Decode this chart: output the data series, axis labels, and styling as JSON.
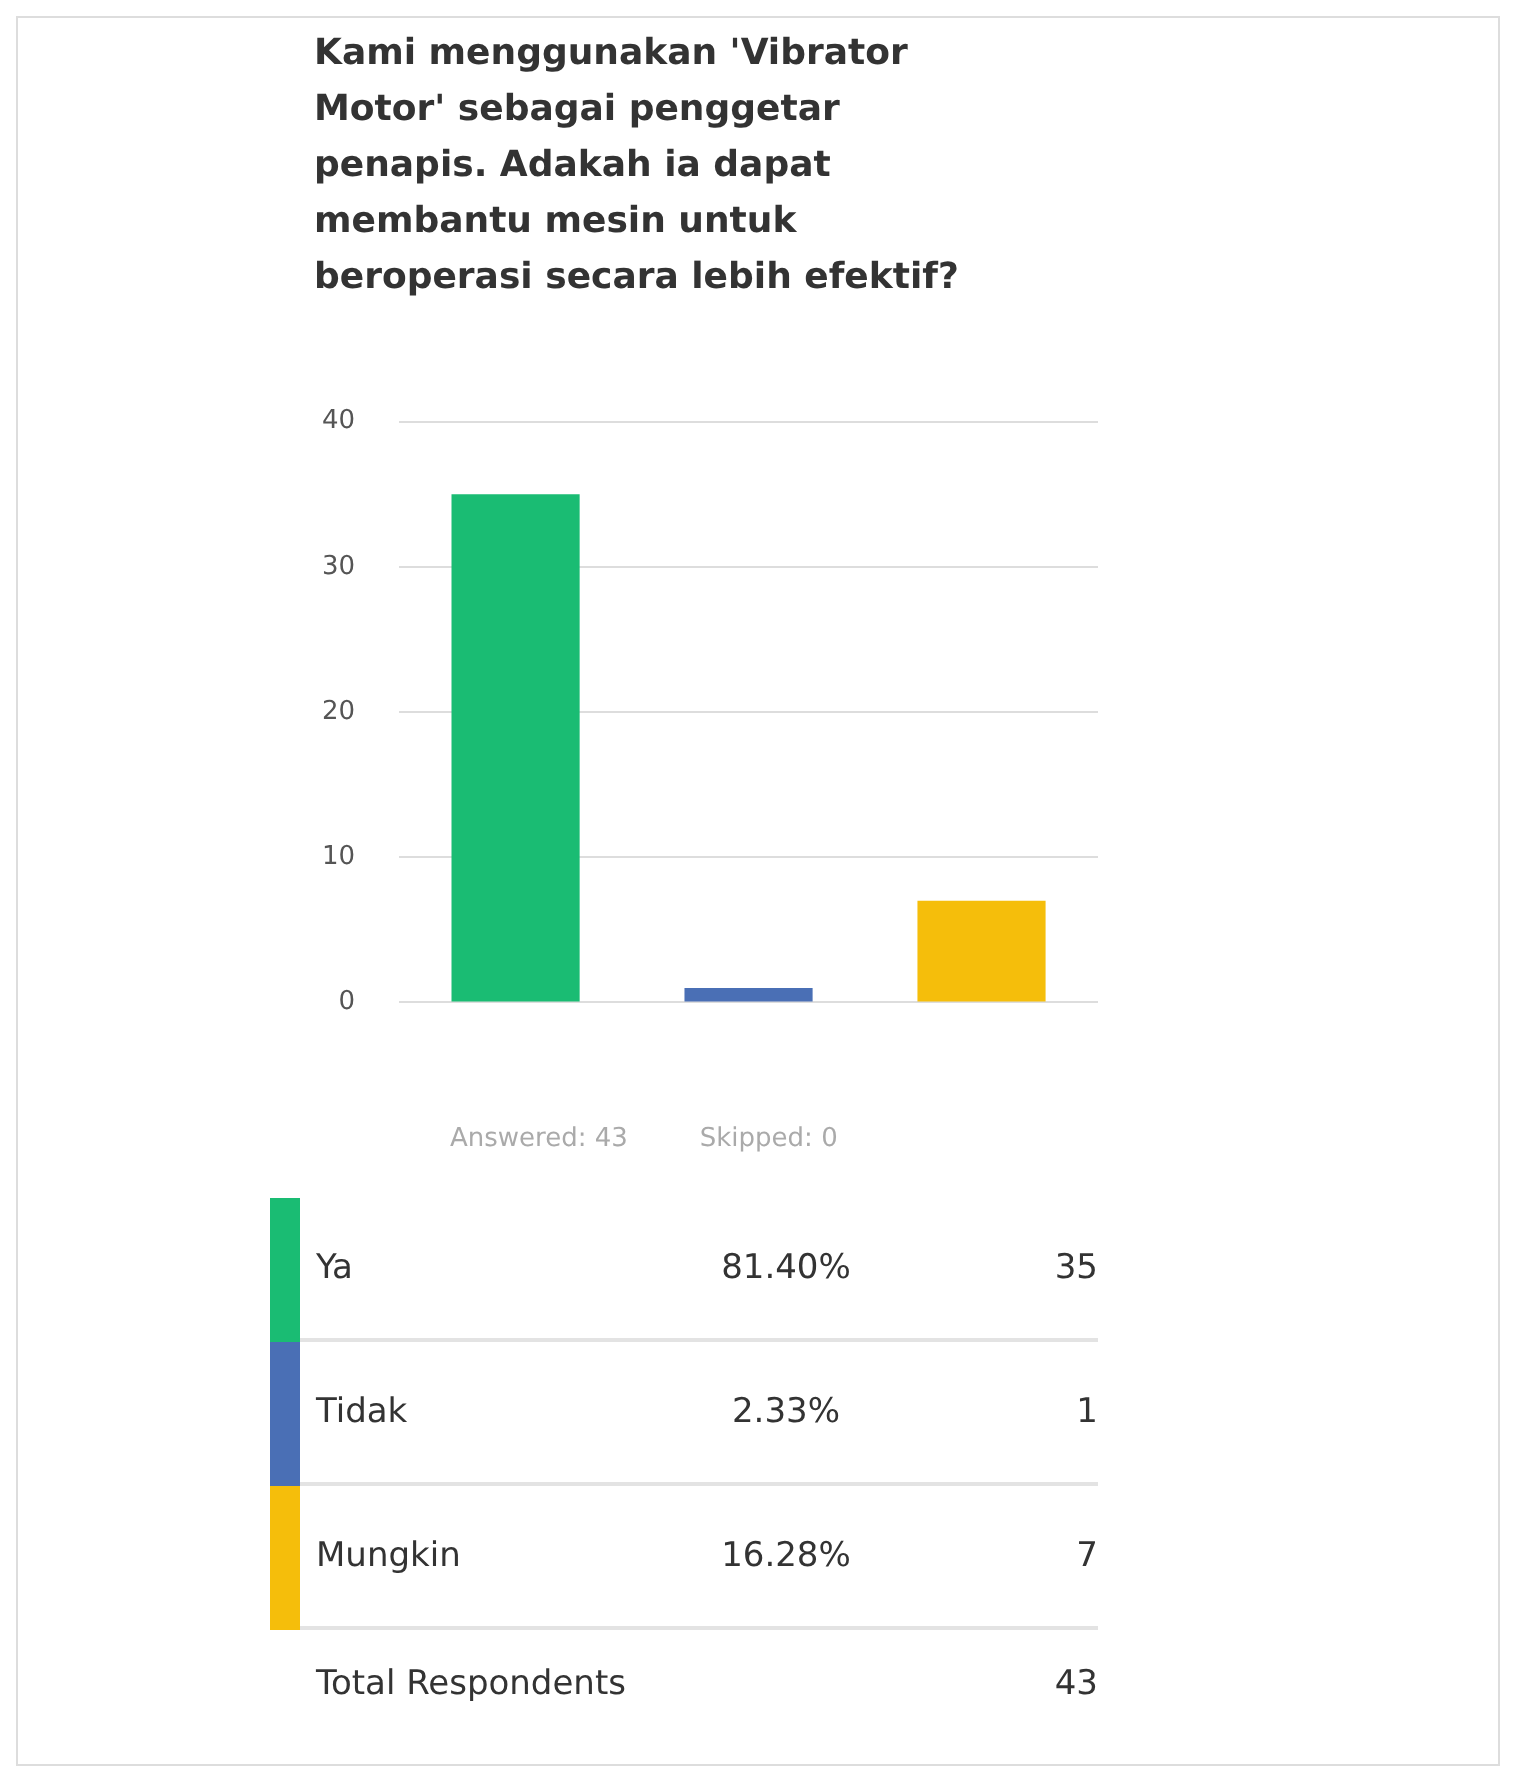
{
  "chart_data": {
    "type": "bar",
    "title": "Kami menggunakan 'Vibrator Motor' sebagai penggetar penapis. Adakah ia dapat membantu mesin untuk beroperasi secara lebih efektif?",
    "categories": [
      null,
      null,
      null
    ],
    "values": [
      35,
      1,
      7
    ],
    "colors": [
      "#1abc73",
      "#4a6fb5",
      "#f5be0b"
    ],
    "ylim": [
      0,
      40
    ],
    "yticks": [
      0,
      10,
      20,
      30,
      40
    ],
    "grid": "y",
    "tick_labels": "y",
    "annotations": [
      "Answered: 43",
      "Skipped: 0",
      "Ya",
      "81.40%",
      "35",
      "Tidak",
      "2.33%",
      "1",
      "Mungkin",
      "16.28%",
      "7",
      "Total Respondents",
      "43"
    ]
  }
}
